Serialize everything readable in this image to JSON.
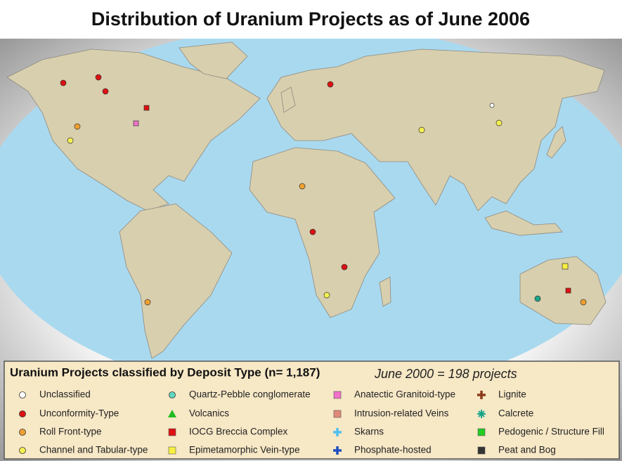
{
  "title": "Distribution of Uranium Projects as of June 2006",
  "legend": {
    "title": "Uranium Projects classified by Deposit Type (n= 1,187)",
    "note": "June 2000 = 198 projects",
    "items": [
      {
        "label": "Unclassified",
        "shape": "circle",
        "color": "#ffffff"
      },
      {
        "label": "Unconformity-Type",
        "shape": "circle",
        "color": "#dd1111"
      },
      {
        "label": "Roll Front-type",
        "shape": "circle",
        "color": "#f0a030"
      },
      {
        "label": "Channel and Tabular-type",
        "shape": "circle",
        "color": "#f4f050"
      },
      {
        "label": "Quartz-Pebble conglomerate",
        "shape": "circle",
        "color": "#60d8c0"
      },
      {
        "label": "Volcanics",
        "shape": "triangle",
        "color": "#22bb22"
      },
      {
        "label": "IOCG Breccia Complex",
        "shape": "square",
        "color": "#dd1111"
      },
      {
        "label": "Epimetamorphic Vein-type",
        "shape": "square",
        "color": "#f8f040"
      },
      {
        "label": "Anatectic Granitoid-type",
        "shape": "square",
        "color": "#f070c8"
      },
      {
        "label": "Intrusion-related Veins",
        "shape": "square",
        "color": "#e08878"
      },
      {
        "label": "Skarns",
        "shape": "cross",
        "color": "#50c0f0"
      },
      {
        "label": "Phosphate-hosted",
        "shape": "cross",
        "color": "#1f4fbf"
      },
      {
        "label": "Lignite",
        "shape": "cross",
        "color": "#8b3a1a"
      },
      {
        "label": "Calcrete",
        "shape": "star",
        "color": "#1aa58a"
      },
      {
        "label": "Pedogenic / Structure Fill",
        "shape": "square",
        "color": "#22cc22"
      },
      {
        "label": "Peat and Bog",
        "shape": "square",
        "color": "#333333"
      }
    ]
  }
}
